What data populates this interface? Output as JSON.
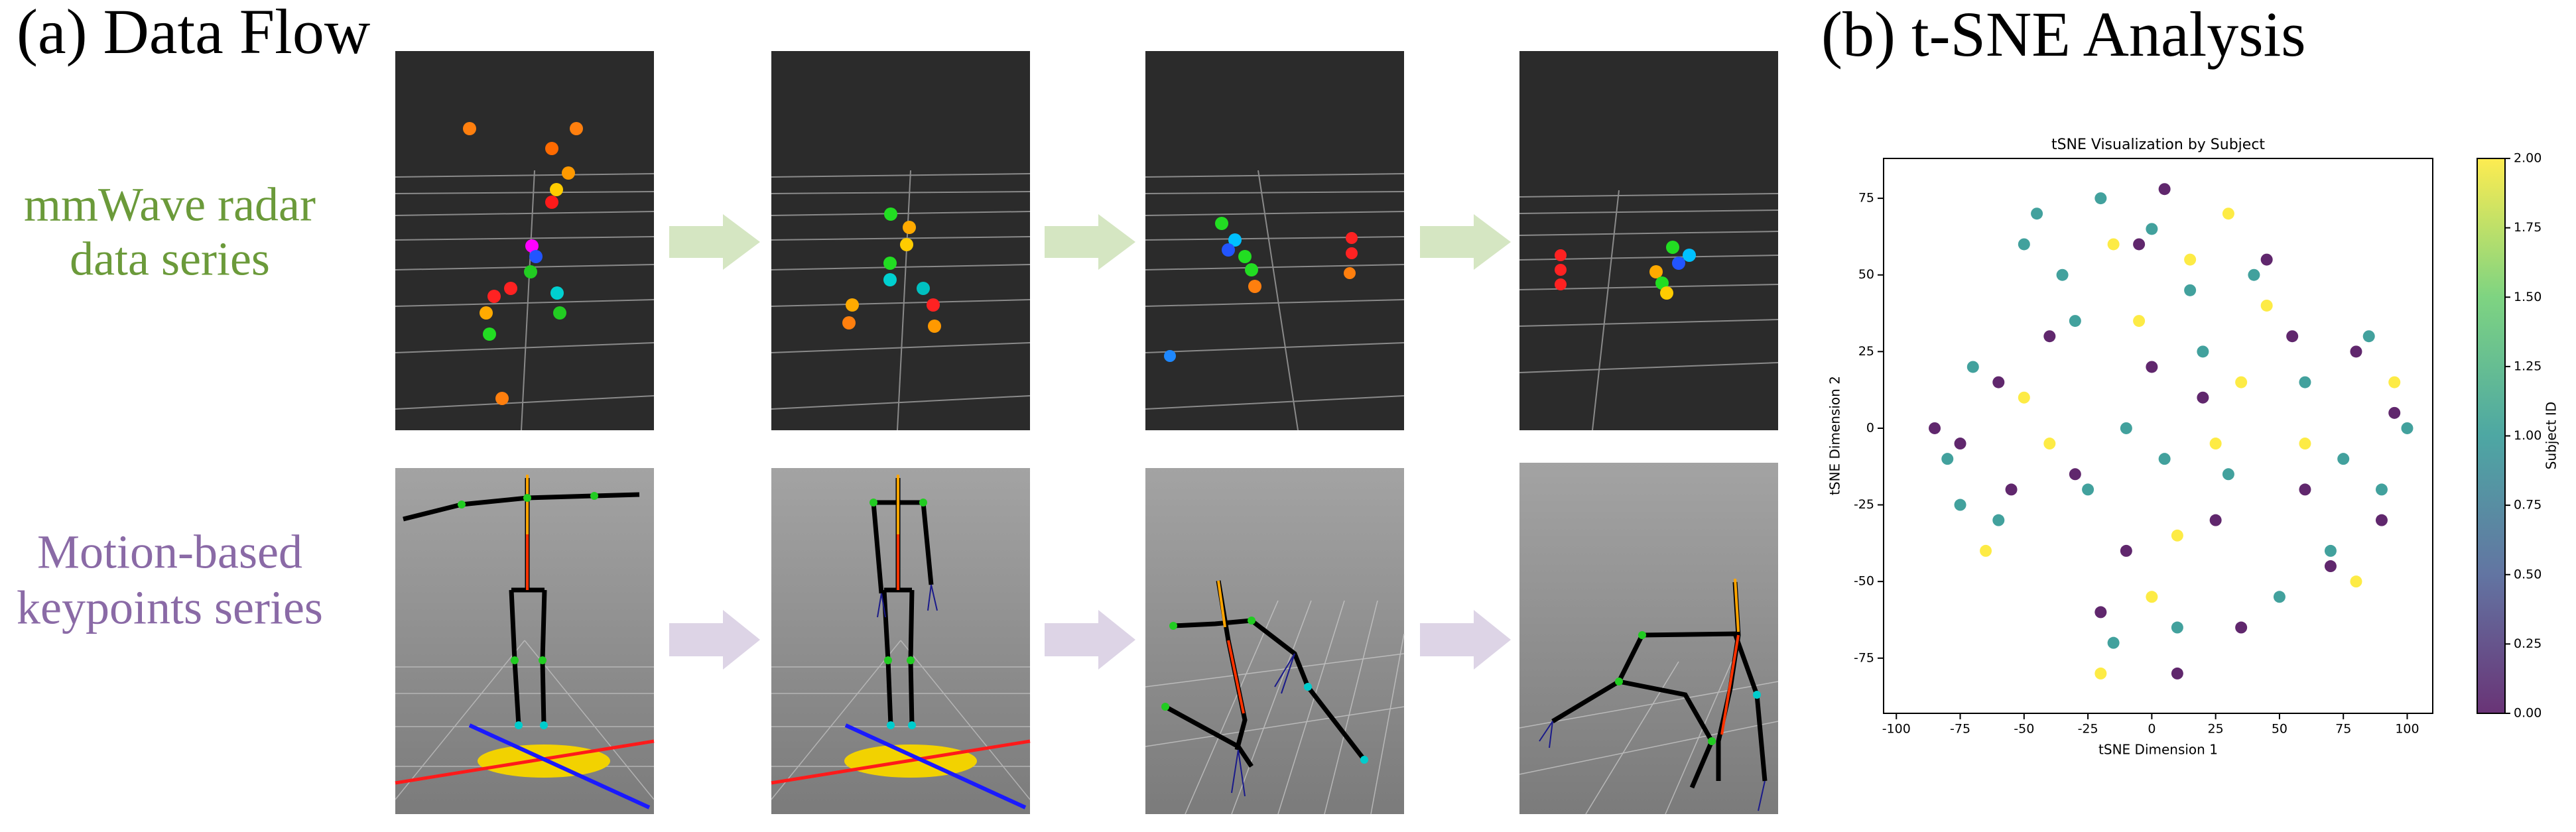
{
  "panel_a": {
    "title": "(a) Data Flow",
    "row_labels": [
      [
        "mmWave radar",
        "data series"
      ],
      [
        "Motion-based",
        "keypoints series"
      ]
    ]
  },
  "panel_b_title": "(b) t-SNE Analysis",
  "chart_data": {
    "type": "scatter",
    "title": "tSNE Visualization by Subject",
    "x_label": "tSNE Dimension 1",
    "y_label": "tSNE Dimension 2",
    "xlim": [
      -105,
      110
    ],
    "ylim": [
      -93,
      88
    ],
    "xticks": [
      -100,
      -75,
      -50,
      -25,
      0,
      25,
      50,
      75,
      100
    ],
    "yticks": [
      -75,
      -50,
      -25,
      0,
      25,
      50,
      75
    ],
    "x": [
      5,
      -20,
      35,
      90,
      -75,
      -40,
      60,
      80,
      -10,
      20,
      -55,
      45,
      -5,
      10,
      95,
      -85,
      70,
      -30,
      25,
      55,
      -60,
      0,
      -50,
      -45,
      -35,
      -20,
      0,
      15,
      40,
      -70,
      -80,
      -60,
      -25,
      -10,
      5,
      30,
      60,
      75,
      90,
      100,
      70,
      -15,
      10,
      -30,
      20,
      50,
      -75,
      85,
      -15,
      15,
      45,
      -40,
      25,
      -5,
      0,
      -20,
      80,
      60,
      -65,
      30,
      -50,
      10,
      95,
      35
    ],
    "y": [
      78,
      -60,
      -65,
      -30,
      -5,
      30,
      -20,
      25,
      -40,
      10,
      -20,
      55,
      60,
      -80,
      5,
      0,
      -45,
      -15,
      -30,
      30,
      15,
      20,
      60,
      70,
      50,
      75,
      65,
      45,
      50,
      20,
      -10,
      -30,
      -20,
      0,
      -10,
      -15,
      15,
      -10,
      -20,
      0,
      -40,
      -70,
      -65,
      35,
      25,
      -55,
      -25,
      30,
      60,
      55,
      40,
      -5,
      -5,
      35,
      -55,
      -80,
      -50,
      -5,
      -40,
      70,
      10,
      -35,
      15,
      15
    ],
    "c": [
      0,
      0,
      0,
      0,
      0,
      0,
      0,
      0,
      0,
      0,
      0,
      0,
      0,
      0,
      0,
      0,
      0,
      0,
      0,
      0,
      0,
      0,
      1,
      1,
      1,
      1,
      1,
      1,
      1,
      1,
      1,
      1,
      1,
      1,
      1,
      1,
      1,
      1,
      1,
      1,
      1,
      1,
      1,
      1,
      1,
      1,
      1,
      1,
      2,
      2,
      2,
      2,
      2,
      2,
      2,
      2,
      2,
      2,
      2,
      2,
      2,
      2,
      2,
      2
    ],
    "colorbar": {
      "label": "Subject ID",
      "lim": [
        0,
        2
      ],
      "ticks": [
        {
          "value": 0,
          "label": "0.00"
        },
        {
          "value": 0.25,
          "label": "0.25"
        },
        {
          "value": 0.5,
          "label": "0.50"
        },
        {
          "value": 0.75,
          "label": "0.75"
        },
        {
          "value": 1,
          "label": "1.00"
        },
        {
          "value": 1.25,
          "label": "1.25"
        },
        {
          "value": 1.5,
          "label": "1.50"
        },
        {
          "value": 1.75,
          "label": "1.75"
        },
        {
          "value": 2,
          "label": "2.00"
        }
      ],
      "colors": [
        "#440154",
        "#3b528b",
        "#21918c",
        "#5ec962",
        "#fde725"
      ]
    }
  }
}
